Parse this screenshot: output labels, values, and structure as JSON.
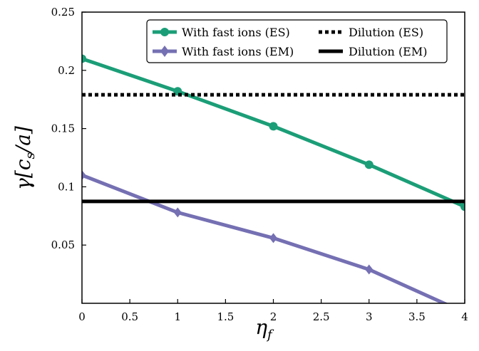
{
  "chart_data": {
    "type": "line",
    "xlabel_main": "η",
    "xlabel_sub": "f",
    "ylabel": "γ[c",
    "ylabel_sub": "s",
    "ylabel_tail": "/a]",
    "xlim": [
      0,
      4
    ],
    "ylim": [
      0,
      0.25
    ],
    "xticks": [
      0,
      0.5,
      1,
      1.5,
      2,
      2.5,
      3,
      3.5,
      4
    ],
    "xtick_labels": [
      "0",
      "0.5",
      "1",
      "1.5",
      "2",
      "2.5",
      "3",
      "3.5",
      "4"
    ],
    "yticks": [
      0.05,
      0.1,
      0.15,
      0.2,
      0.25
    ],
    "ytick_labels": [
      "0.05",
      "0.1",
      "0.15",
      "0.2",
      "0.25"
    ],
    "grid": false,
    "legend_position": "top-right",
    "series": [
      {
        "name": "With fast ions (ES)",
        "color": "#1b9e77",
        "marker": "circle",
        "style": "solid",
        "x": [
          0,
          1,
          2,
          3,
          4
        ],
        "y": [
          0.21,
          0.182,
          0.152,
          0.119,
          0.083
        ]
      },
      {
        "name": "With fast ions (EM)",
        "color": "#7570b3",
        "marker": "diamond",
        "style": "solid",
        "x": [
          0,
          1,
          2,
          3,
          4
        ],
        "y": [
          0.11,
          0.078,
          0.056,
          0.029,
          -0.008
        ]
      },
      {
        "name": "Dilution (ES)",
        "color": "#000000",
        "marker": "none",
        "style": "dotted",
        "x": [
          0,
          4
        ],
        "y": [
          0.179,
          0.179
        ]
      },
      {
        "name": "Dilution (EM)",
        "color": "#000000",
        "marker": "none",
        "style": "solid",
        "x": [
          0,
          4
        ],
        "y": [
          0.0875,
          0.0875
        ]
      }
    ]
  }
}
